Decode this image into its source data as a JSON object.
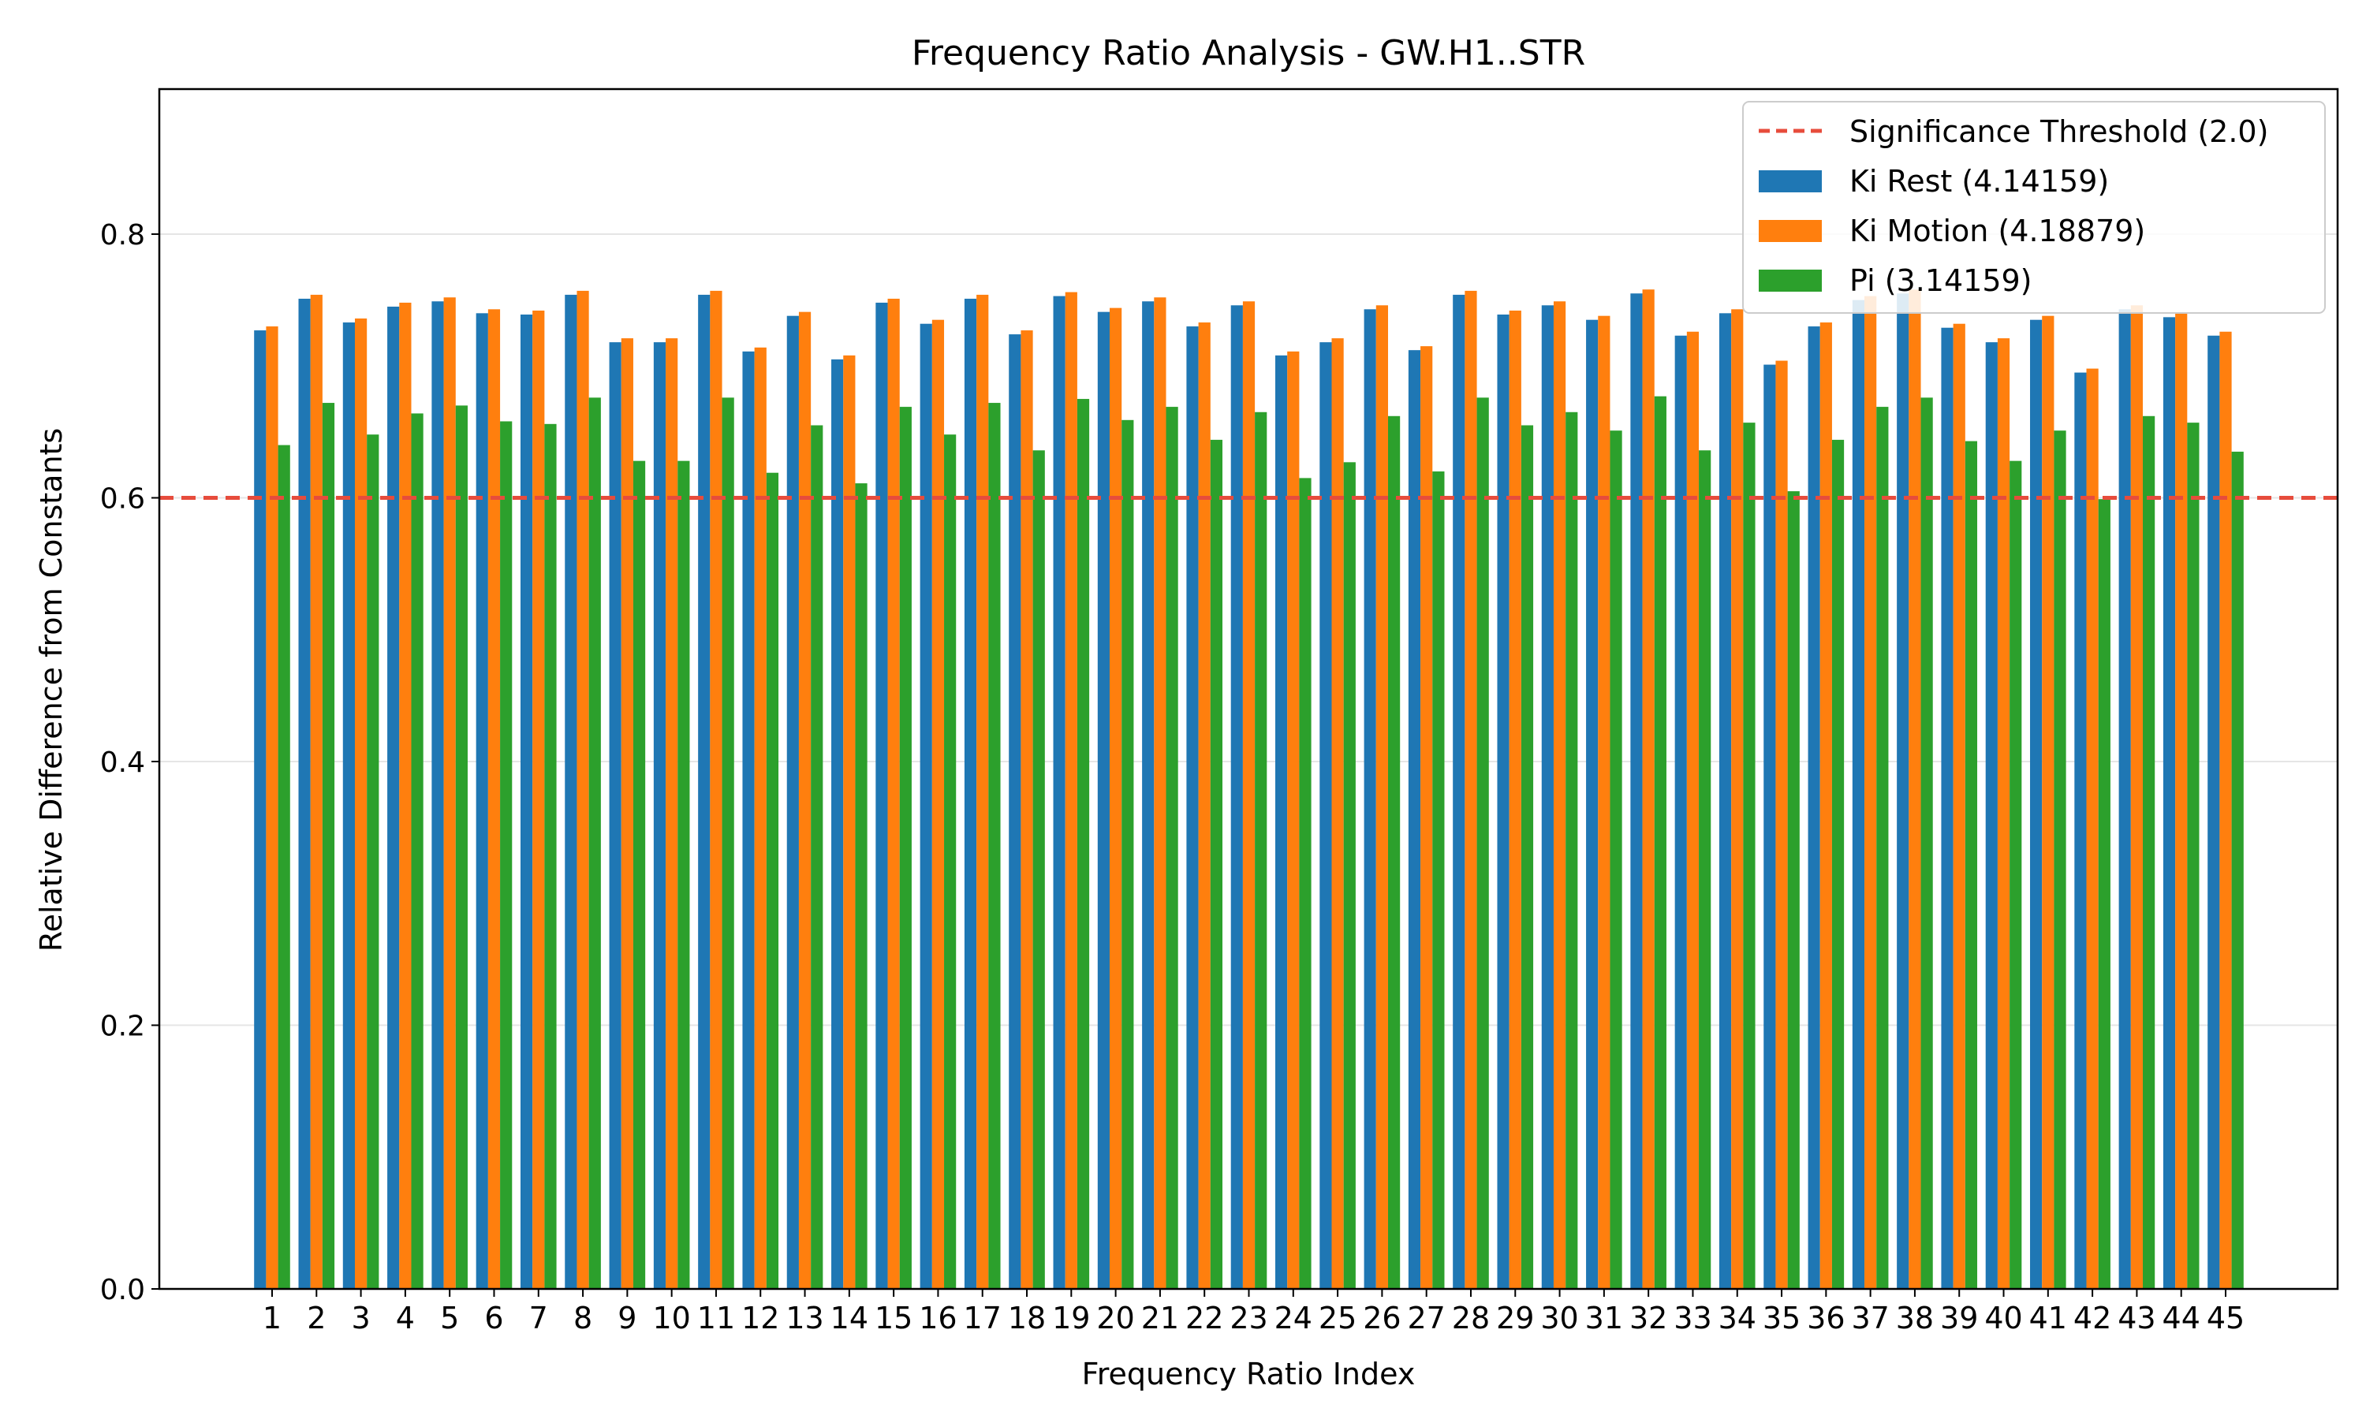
{
  "chart_data": {
    "type": "bar",
    "title": "Frequency Ratio Analysis - GW.H1..STR",
    "xlabel": "Frequency Ratio Index",
    "ylabel": "Relative Difference from Constants",
    "ylim": [
      0,
      0.91
    ],
    "yticks": [
      "0.0",
      "0.2",
      "0.4",
      "0.6",
      "0.8"
    ],
    "categories": [
      "1",
      "2",
      "3",
      "4",
      "5",
      "6",
      "7",
      "8",
      "9",
      "10",
      "11",
      "12",
      "13",
      "14",
      "15",
      "16",
      "17",
      "18",
      "19",
      "20",
      "21",
      "22",
      "23",
      "24",
      "25",
      "26",
      "27",
      "28",
      "29",
      "30",
      "31",
      "32",
      "33",
      "34",
      "35",
      "36",
      "37",
      "38",
      "39",
      "40",
      "41",
      "42",
      "43",
      "44",
      "45"
    ],
    "series": [
      {
        "name": "Ki Rest (4.14159)",
        "color": "#1f77b4",
        "values": [
          0.727,
          0.751,
          0.733,
          0.745,
          0.749,
          0.74,
          0.739,
          0.754,
          0.718,
          0.718,
          0.754,
          0.711,
          0.738,
          0.705,
          0.748,
          0.732,
          0.751,
          0.724,
          0.753,
          0.741,
          0.749,
          0.73,
          0.746,
          0.708,
          0.718,
          0.743,
          0.712,
          0.754,
          0.739,
          0.746,
          0.735,
          0.755,
          0.723,
          0.74,
          0.701,
          0.73,
          0.75,
          0.755,
          0.729,
          0.718,
          0.735,
          0.695,
          0.743,
          0.737,
          0.723
        ]
      },
      {
        "name": "Ki Motion (4.18879)",
        "color": "#ff7f0e",
        "values": [
          0.73,
          0.754,
          0.736,
          0.748,
          0.752,
          0.743,
          0.742,
          0.757,
          0.721,
          0.721,
          0.757,
          0.714,
          0.741,
          0.708,
          0.751,
          0.735,
          0.754,
          0.727,
          0.756,
          0.744,
          0.752,
          0.733,
          0.749,
          0.711,
          0.721,
          0.746,
          0.715,
          0.757,
          0.742,
          0.749,
          0.738,
          0.758,
          0.726,
          0.743,
          0.704,
          0.733,
          0.753,
          0.758,
          0.732,
          0.721,
          0.738,
          0.698,
          0.746,
          0.74,
          0.726
        ]
      },
      {
        "name": "Pi (3.14159)",
        "color": "#2ca02c",
        "values": [
          0.64,
          0.672,
          0.648,
          0.664,
          0.67,
          0.658,
          0.656,
          0.676,
          0.628,
          0.628,
          0.676,
          0.619,
          0.655,
          0.611,
          0.669,
          0.648,
          0.672,
          0.636,
          0.675,
          0.659,
          0.669,
          0.644,
          0.665,
          0.615,
          0.627,
          0.662,
          0.62,
          0.676,
          0.655,
          0.665,
          0.651,
          0.677,
          0.636,
          0.657,
          0.605,
          0.644,
          0.669,
          0.676,
          0.643,
          0.628,
          0.651,
          0.599,
          0.662,
          0.657,
          0.635
        ]
      }
    ],
    "threshold": {
      "label": "Significance Threshold (2.0)",
      "value": 0.6,
      "color": "#e74c3c"
    },
    "legend_position": "top-right",
    "grid": "horizontal"
  }
}
